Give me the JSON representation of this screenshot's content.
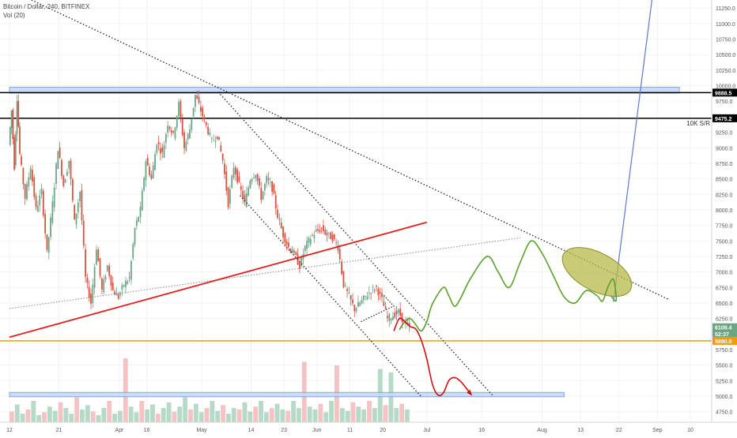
{
  "legend": {
    "title": "Bitcoin / Dollar, 240, BITFINEX",
    "volume": "Vol (20)"
  },
  "chart_data": {
    "type": "candlestick",
    "y_axis": {
      "range": [
        4580,
        11380
      ],
      "ticks": [
        {
          "value": 11250,
          "label": "11250.0"
        },
        {
          "value": 11000,
          "label": "11000.0"
        },
        {
          "value": 10750,
          "label": "10750.0"
        },
        {
          "value": 10500,
          "label": "10500.0"
        },
        {
          "value": 10250,
          "label": "10250.0"
        },
        {
          "value": 10000,
          "label": "10000.0"
        },
        {
          "value": 9750,
          "label": "9750.0"
        },
        {
          "value": 9250,
          "label": "9250.0"
        },
        {
          "value": 9000,
          "label": "9000.0"
        },
        {
          "value": 8750,
          "label": "8750.0"
        },
        {
          "value": 8500,
          "label": "8500.0"
        },
        {
          "value": 8250,
          "label": "8250.0"
        },
        {
          "value": 8000,
          "label": "8000.0"
        },
        {
          "value": 7750,
          "label": "7750.0"
        },
        {
          "value": 7500,
          "label": "7500.0"
        },
        {
          "value": 7250,
          "label": "7250.0"
        },
        {
          "value": 7000,
          "label": "7000.0"
        },
        {
          "value": 6750,
          "label": "6750.0"
        },
        {
          "value": 6500,
          "label": "6500.0"
        },
        {
          "value": 6250,
          "label": "6250.0"
        },
        {
          "value": 5750,
          "label": "5750.0"
        },
        {
          "value": 5500,
          "label": "5500.0"
        },
        {
          "value": 5250,
          "label": "5250.0"
        },
        {
          "value": 5000,
          "label": "5000.0"
        },
        {
          "value": 4750,
          "label": "4750.0"
        }
      ],
      "price_labels": [
        {
          "value": 9888.5,
          "label": "9888.5",
          "bg": "#000000"
        },
        {
          "value": 9475.2,
          "label": "9475.2",
          "bg": "#000000"
        },
        {
          "value": 6109.4,
          "label": "6109.4",
          "bg": "#6ba583"
        },
        {
          "label": "52:37",
          "bg": "#6ba583",
          "value": 6005
        },
        {
          "value": 5890.0,
          "label": "5890.0",
          "bg": "#ff9800"
        }
      ]
    },
    "x_axis": {
      "range_days": [
        0,
        124
      ],
      "ticks": [
        {
          "day": 0,
          "label": "12"
        },
        {
          "day": 9,
          "label": "21"
        },
        {
          "day": 20,
          "label": "Apr"
        },
        {
          "day": 25,
          "label": "16"
        },
        {
          "day": 35,
          "label": "May"
        },
        {
          "day": 44,
          "label": "14"
        },
        {
          "day": 50,
          "label": "23"
        },
        {
          "day": 56,
          "label": "Jun"
        },
        {
          "day": 62,
          "label": "11"
        },
        {
          "day": 68,
          "label": "20"
        },
        {
          "day": 76,
          "label": "Jul"
        },
        {
          "day": 86,
          "label": "16"
        },
        {
          "day": 97,
          "label": "Aug"
        },
        {
          "day": 104,
          "label": "13"
        },
        {
          "day": 111,
          "label": "22"
        },
        {
          "day": 118,
          "label": "Sep"
        },
        {
          "day": 124,
          "label": "10"
        }
      ]
    },
    "price_path": [
      [
        0,
        9050
      ],
      [
        0.5,
        9600
      ],
      [
        1,
        8700
      ],
      [
        1.5,
        9800
      ],
      [
        2,
        8900
      ],
      [
        3,
        8200
      ],
      [
        4,
        8700
      ],
      [
        5,
        8000
      ],
      [
        6,
        8300
      ],
      [
        7,
        7300
      ],
      [
        8,
        8100
      ],
      [
        9,
        9000
      ],
      [
        10,
        8400
      ],
      [
        11,
        8800
      ],
      [
        12,
        7800
      ],
      [
        13,
        8300
      ],
      [
        14,
        6900
      ],
      [
        15,
        6500
      ],
      [
        16,
        7400
      ],
      [
        17,
        6700
      ],
      [
        18,
        7100
      ],
      [
        19,
        6700
      ],
      [
        20,
        6600
      ],
      [
        21,
        6800
      ],
      [
        22,
        6900
      ],
      [
        23,
        7700
      ],
      [
        24,
        8000
      ],
      [
        25,
        8800
      ],
      [
        26,
        8500
      ],
      [
        27,
        9100
      ],
      [
        28,
        8900
      ],
      [
        29,
        9400
      ],
      [
        30,
        9200
      ],
      [
        31,
        9700
      ],
      [
        32,
        9000
      ],
      [
        33,
        9300
      ],
      [
        34,
        9850
      ],
      [
        35,
        9600
      ],
      [
        36,
        9350
      ],
      [
        37,
        9100
      ],
      [
        38,
        9200
      ],
      [
        39,
        8800
      ],
      [
        40,
        8100
      ],
      [
        41,
        8700
      ],
      [
        42,
        8400
      ],
      [
        43,
        8100
      ],
      [
        44,
        8500
      ],
      [
        45,
        8600
      ],
      [
        46,
        8200
      ],
      [
        47,
        8500
      ],
      [
        48,
        8350
      ],
      [
        49,
        7900
      ],
      [
        50,
        7600
      ],
      [
        51,
        7400
      ],
      [
        52,
        7300
      ],
      [
        53,
        7100
      ],
      [
        54,
        7400
      ],
      [
        55,
        7550
      ],
      [
        56,
        7650
      ],
      [
        57,
        7700
      ],
      [
        58,
        7600
      ],
      [
        59,
        7550
      ],
      [
        60,
        7400
      ],
      [
        61,
        6800
      ],
      [
        62,
        6600
      ],
      [
        63,
        6400
      ],
      [
        64,
        6500
      ],
      [
        65,
        6600
      ],
      [
        66,
        6700
      ],
      [
        67,
        6750
      ],
      [
        68,
        6550
      ],
      [
        69,
        6250
      ],
      [
        70,
        6300
      ],
      [
        71,
        6350
      ],
      [
        72,
        6200
      ],
      [
        73,
        6110
      ]
    ],
    "volume_range": [
      0,
      1
    ],
    "volume_values": [
      0.15,
      0.25,
      0.12,
      0.18,
      0.3,
      0.1,
      0.14,
      0.22,
      0.16,
      0.28,
      0.2,
      0.12,
      0.35,
      0.18,
      0.24,
      0.15,
      0.1,
      0.2,
      0.3,
      0.12,
      0.16,
      0.9,
      0.22,
      0.14,
      0.3,
      0.18,
      0.25,
      0.12,
      0.2,
      0.28,
      0.15,
      0.22,
      0.35,
      0.18,
      0.26,
      0.14,
      0.2,
      0.3,
      0.16,
      0.24,
      0.12,
      0.2,
      0.18,
      0.28,
      0.15,
      0.22,
      0.3,
      0.14,
      0.2,
      0.26,
      0.18,
      0.16,
      0.3,
      0.2,
      0.85,
      0.22,
      0.18,
      0.26,
      0.14,
      0.3,
      0.8,
      0.2,
      0.16,
      0.28,
      0.22,
      0.18,
      0.3,
      0.2,
      0.75,
      0.24,
      0.7,
      0.2,
      0.26,
      0.18
    ],
    "annotations": {
      "resistance_zone_top": {
        "y_range": [
          9880,
          9975
        ],
        "x_range": [
          0,
          122
        ]
      },
      "support_zone_bottom": {
        "y_range": [
          4990,
          5060
        ],
        "x_range": [
          0,
          101
        ]
      },
      "hline_9888": {
        "value": 9888.5,
        "color": "#000000"
      },
      "hline_9475": {
        "value": 9475.2,
        "color": "#000000",
        "label": "10K S/R"
      },
      "hline_5890": {
        "value": 5890,
        "color": "#ff9800"
      },
      "red_trendline": {
        "from": [
          0,
          5950
        ],
        "to": [
          76,
          7800
        ],
        "color": "#e02020"
      },
      "gray_dotted_trendline": {
        "from": [
          0,
          6410
        ],
        "to": [
          93,
          7550
        ],
        "color": "#888888"
      },
      "long_dotted_downtrend": {
        "from": [
          4,
          11380
        ],
        "to": [
          120,
          6560
        ],
        "color": "#222222"
      },
      "channel_upper": {
        "from": [
          38,
          9900
        ],
        "to": [
          88,
          5010
        ],
        "color": "#222222"
      },
      "channel_lower": {
        "from": [
          42,
          8230
        ],
        "to": [
          75,
          4990
        ],
        "color": "#222222"
      },
      "small_wedge": {
        "points": [
          [
            64,
            6200
          ],
          [
            70,
            6450
          ],
          [
            68,
            6640
          ]
        ],
        "color": "#222222"
      },
      "blue_projection": {
        "from": [
          110,
          6520
        ],
        "to": [
          117,
          11380
        ],
        "color": "#5b7bd5"
      },
      "green_projection": {
        "color": "#5aa02c",
        "points": [
          [
            71,
            6070
          ],
          [
            72,
            6200
          ],
          [
            73,
            6250
          ],
          [
            74,
            6150
          ],
          [
            75,
            6050
          ],
          [
            76,
            6200
          ],
          [
            77,
            6480
          ],
          [
            79,
            6750
          ],
          [
            80,
            6620
          ],
          [
            81,
            6450
          ],
          [
            82,
            6550
          ],
          [
            84,
            6900
          ],
          [
            87,
            7250
          ],
          [
            89,
            7000
          ],
          [
            91,
            6750
          ],
          [
            93,
            7150
          ],
          [
            95,
            7500
          ],
          [
            97,
            7300
          ],
          [
            99,
            6950
          ],
          [
            101,
            6600
          ],
          [
            103,
            6500
          ],
          [
            105,
            6700
          ],
          [
            107,
            6620
          ],
          [
            108,
            6530
          ],
          [
            109,
            6760
          ],
          [
            110,
            6880
          ],
          [
            110.5,
            6540
          ],
          [
            109.5,
            6620
          ]
        ]
      },
      "red_projection": {
        "color": "#d01010",
        "points": [
          [
            70,
            6050
          ],
          [
            71,
            6250
          ],
          [
            72,
            6200
          ],
          [
            73,
            6120
          ],
          [
            74,
            6080
          ],
          [
            75,
            5900
          ],
          [
            76,
            5600
          ],
          [
            77,
            5200
          ],
          [
            78,
            5020
          ],
          [
            79,
            5050
          ],
          [
            80,
            5250
          ],
          [
            81,
            5300
          ],
          [
            82,
            5250
          ],
          [
            83,
            5150
          ],
          [
            84,
            5030
          ]
        ]
      },
      "ellipse_target": {
        "center": [
          107,
          7000
        ],
        "color": "#b7b94a"
      }
    }
  }
}
